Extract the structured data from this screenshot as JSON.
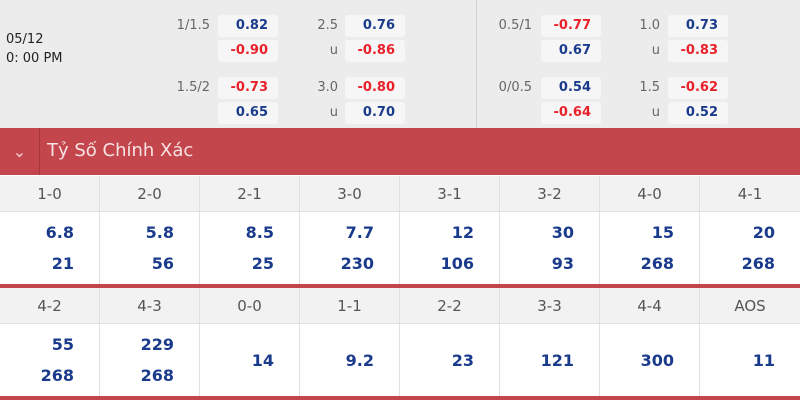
{
  "match": {
    "date": "05/12",
    "time": "0: 00 PM"
  },
  "odds": [
    {
      "label": "1/1.5",
      "v1": "0.82",
      "v2": "-0.90"
    },
    {
      "label": "2.5",
      "v1": "0.76",
      "sub": "u",
      "v2": "-0.86"
    },
    {
      "label": "1.5/2",
      "v1": "-0.73",
      "v2": "0.65"
    },
    {
      "label": "3.0",
      "v1": "-0.80",
      "sub": "u",
      "v2": "0.70"
    },
    {
      "label": "0.5/1",
      "v1": "-0.77",
      "v2": "0.67"
    },
    {
      "label": "1.0",
      "v1": "0.73",
      "sub": "u",
      "v2": "-0.83"
    },
    {
      "label": "0/0.5",
      "v1": "0.54",
      "v2": "-0.64"
    },
    {
      "label": "1.5",
      "v1": "-0.62",
      "sub": "u",
      "v2": "0.52"
    }
  ],
  "section": {
    "title": "Tỷ Số Chính Xác",
    "icon": "chevron-down-icon"
  },
  "colors": {
    "accent": "#c4464d",
    "positive": "#1a3b8c",
    "negative": "#e8212b"
  },
  "scores_row1": [
    {
      "score": "1-0",
      "a": "6.8",
      "b": "21"
    },
    {
      "score": "2-0",
      "a": "5.8",
      "b": "56"
    },
    {
      "score": "2-1",
      "a": "8.5",
      "b": "25"
    },
    {
      "score": "3-0",
      "a": "7.7",
      "b": "230"
    },
    {
      "score": "3-1",
      "a": "12",
      "b": "106"
    },
    {
      "score": "3-2",
      "a": "30",
      "b": "93"
    },
    {
      "score": "4-0",
      "a": "15",
      "b": "268"
    },
    {
      "score": "4-1",
      "a": "20",
      "b": "268"
    }
  ],
  "scores_row2": [
    {
      "score": "4-2",
      "a": "55",
      "b": "268"
    },
    {
      "score": "4-3",
      "a": "229",
      "b": "268"
    },
    {
      "score": "0-0",
      "a": "14"
    },
    {
      "score": "1-1",
      "a": "9.2"
    },
    {
      "score": "2-2",
      "a": "23"
    },
    {
      "score": "3-3",
      "a": "121"
    },
    {
      "score": "4-4",
      "a": "300"
    },
    {
      "score": "AOS",
      "a": "11"
    }
  ]
}
